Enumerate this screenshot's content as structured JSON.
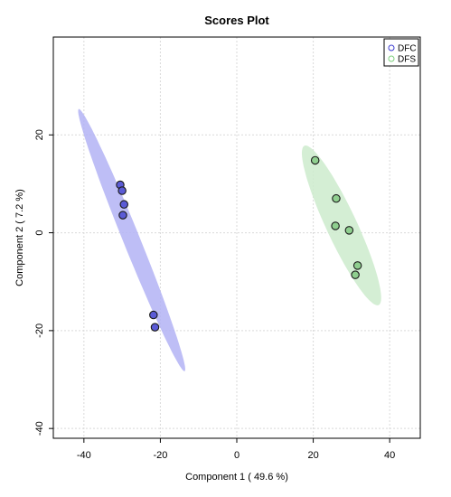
{
  "chart_data": {
    "type": "scatter",
    "title": "Scores Plot",
    "xlabel": "Component 1 ( 49.6 %)",
    "ylabel": "Component 2 ( 7.2 %)",
    "xlim": [
      -48,
      48
    ],
    "ylim": [
      -42,
      40
    ],
    "xticks": [
      -40,
      -20,
      0,
      20,
      40
    ],
    "yticks": [
      -40,
      -20,
      0,
      20
    ],
    "grid": true,
    "legend_position": "top-right",
    "series": [
      {
        "name": "DFC",
        "point_color": "#5b5bd6",
        "marker": "circle-outline",
        "legend_color": "#3b3bd0",
        "ellipse_color": "#b3b3f5",
        "ellipse": {
          "center": [
            -27.5,
            -1.5
          ],
          "semi_major": 37,
          "semi_minor": 2.2,
          "angle_deg": -68
        },
        "points": [
          {
            "x": -30.5,
            "y": 9.8
          },
          {
            "x": -30.0,
            "y": 8.6
          },
          {
            "x": -29.5,
            "y": 5.8
          },
          {
            "x": -29.8,
            "y": 3.6
          },
          {
            "x": -21.8,
            "y": -16.8
          },
          {
            "x": -21.4,
            "y": -19.3
          }
        ]
      },
      {
        "name": "DFS",
        "point_color": "#8fcf8f",
        "marker": "circle-outline",
        "legend_color": "#7ccf7c",
        "ellipse_color": "#cdebcd",
        "ellipse": {
          "center": [
            27.4,
            1.5
          ],
          "semi_major": 23,
          "semi_minor": 4,
          "angle_deg": -65
        },
        "points": [
          {
            "x": 20.5,
            "y": 14.8
          },
          {
            "x": 26.0,
            "y": 7.0
          },
          {
            "x": 25.8,
            "y": 1.4
          },
          {
            "x": 29.4,
            "y": 0.5
          },
          {
            "x": 31.6,
            "y": -6.7
          },
          {
            "x": 31.0,
            "y": -8.6
          }
        ]
      }
    ]
  }
}
